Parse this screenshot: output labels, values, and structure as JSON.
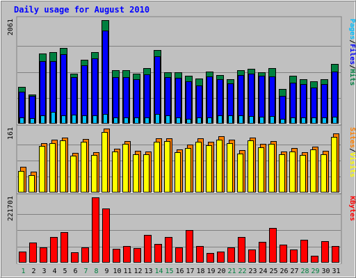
{
  "chart_data": {
    "type": "bar",
    "title": "Daily usage for August 2010",
    "categories": [
      "1",
      "2",
      "3",
      "4",
      "5",
      "6",
      "7",
      "8",
      "9",
      "10",
      "11",
      "12",
      "13",
      "14",
      "15",
      "16",
      "17",
      "18",
      "19",
      "20",
      "21",
      "22",
      "23",
      "24",
      "25",
      "26",
      "27",
      "28",
      "29",
      "30",
      "31"
    ],
    "weekend_days": [
      "1",
      "7",
      "8",
      "14",
      "15",
      "21",
      "22",
      "28",
      "29"
    ],
    "panels": [
      {
        "id": "top",
        "ymax": 2061,
        "ymax_label": "2061",
        "legend": [
          "Pages",
          "/",
          "Files",
          "/",
          "Hits"
        ],
        "series": [
          {
            "name": "Hits",
            "color": "#008040",
            "values": [
              733,
              580,
              1400,
              1420,
              1510,
              1000,
              1270,
              1430,
              2061,
              1060,
              1060,
              1000,
              1110,
              1470,
              1030,
              1030,
              960,
              900,
              1040,
              970,
              880,
              1060,
              1090,
              1030,
              1110,
              690,
              950,
              880,
              840,
              880,
              1190
            ]
          },
          {
            "name": "Files",
            "color": "#0000FF",
            "values": [
              640,
              560,
              1240,
              1250,
              1390,
              920,
              1160,
              1300,
              1860,
              920,
              920,
              880,
              980,
              1340,
              920,
              910,
              850,
              760,
              940,
              880,
              800,
              970,
              1000,
              960,
              940,
              560,
              820,
              790,
              720,
              790,
              1040
            ]
          },
          {
            "name": "Pages",
            "color": "#00BFFF",
            "values": [
              120,
              110,
              160,
              240,
              170,
              180,
              170,
              170,
              190,
              130,
              130,
              120,
              130,
              200,
              160,
              130,
              100,
              120,
              130,
              170,
              160,
              160,
              150,
              140,
              150,
              100,
              120,
              120,
              120,
              120,
              140
            ]
          }
        ]
      },
      {
        "id": "middle",
        "ymax": 161,
        "ymax_label": "161",
        "legend": [
          "Sites",
          "/",
          "Visits"
        ],
        "series": [
          {
            "name": "Visits",
            "color": "#FF8000",
            "values": [
              65,
              52,
              125,
              133,
              139,
              100,
              134,
              102,
              161,
              111,
              130,
              105,
              104,
              136,
              137,
              109,
              120,
              136,
              127,
              141,
              133,
              106,
              139,
              122,
              130,
              104,
              112,
              102,
              116,
              105,
              148
            ]
          },
          {
            "name": "Sites",
            "color": "#FFFF00",
            "values": [
              55,
              44,
              117,
              125,
              131,
              92,
              127,
              95,
              153,
              103,
              122,
              97,
              96,
              128,
              129,
              101,
              112,
              128,
              119,
              133,
              125,
              98,
              131,
              114,
              122,
              96,
              104,
              94,
              108,
              97,
              140
            ]
          }
        ]
      },
      {
        "id": "bottom",
        "ymax": 221701,
        "ymax_label": "221701",
        "legend": [
          "KBytes"
        ],
        "series": [
          {
            "name": "KBytes",
            "color": "#FF0000",
            "values": [
              38000,
              68000,
              52000,
              87000,
              104000,
              35000,
              52000,
              221701,
              183000,
              47000,
              57000,
              49000,
              95000,
              64000,
              87000,
              51000,
              110000,
              56000,
              34000,
              38000,
              51000,
              88000,
              45000,
              71000,
              118000,
              62000,
              45000,
              78000,
              24000,
              74000,
              57000
            ]
          }
        ]
      }
    ]
  }
}
